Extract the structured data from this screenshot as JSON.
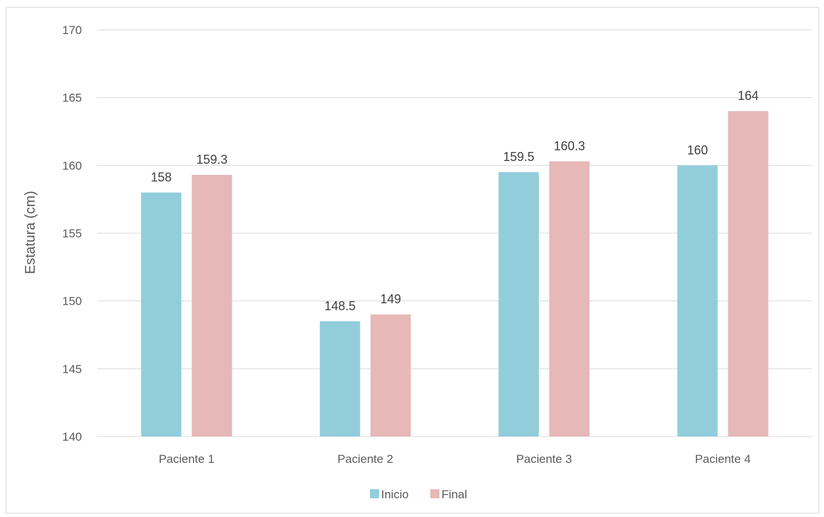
{
  "chart_data": {
    "type": "bar",
    "title": "",
    "xlabel": "",
    "ylabel": "Estatura (cm)",
    "ylim": [
      140,
      170
    ],
    "yticks": [
      140,
      145,
      150,
      155,
      160,
      165,
      170
    ],
    "categories": [
      "Paciente 1",
      "Paciente 2",
      "Paciente 3",
      "Paciente 4"
    ],
    "series": [
      {
        "name": "Inicio",
        "color": "#92cddc",
        "values": [
          158,
          148.5,
          159.5,
          160
        ]
      },
      {
        "name": "Final",
        "color": "#e6b8b7",
        "values": [
          159.3,
          149,
          160.3,
          164
        ]
      }
    ],
    "grid": true,
    "legend": "bottom"
  }
}
